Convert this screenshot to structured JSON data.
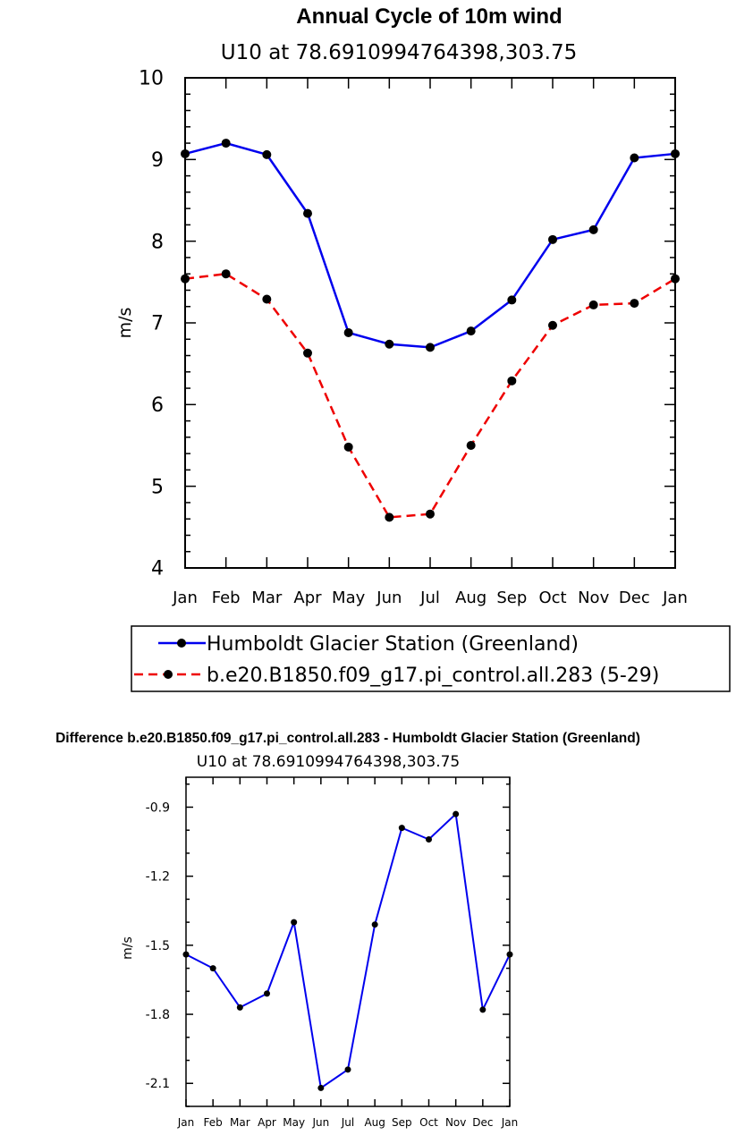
{
  "chart_data": [
    {
      "type": "line",
      "title": "Annual Cycle of 10m wind",
      "subtitle": "U10  at  78.6910994764398,303.75",
      "ylabel": "m/s",
      "xlabel": "",
      "ylim": [
        4,
        10
      ],
      "yticks": [
        "4",
        "5",
        "6",
        "7",
        "8",
        "9",
        "10"
      ],
      "categories": [
        "Jan",
        "Feb",
        "Mar",
        "Apr",
        "May",
        "Jun",
        "Jul",
        "Aug",
        "Sep",
        "Oct",
        "Nov",
        "Dec",
        "Jan"
      ],
      "series": [
        {
          "name": "Humboldt Glacier Station (Greenland)",
          "color": "#0000ee",
          "style": "solid",
          "values": [
            9.07,
            9.2,
            9.06,
            8.34,
            6.88,
            6.74,
            6.7,
            6.9,
            7.28,
            8.02,
            8.14,
            9.02,
            9.07
          ]
        },
        {
          "name": "b.e20.B1850.f09_g17.pi_control.all.283 (5-29)",
          "color": "#ee0000",
          "style": "dashed",
          "values": [
            7.54,
            7.6,
            7.29,
            6.63,
            5.48,
            4.62,
            4.66,
            5.5,
            6.29,
            6.97,
            7.22,
            7.24,
            7.54
          ]
        }
      ],
      "legend": "bottom"
    },
    {
      "type": "line",
      "title": "Difference b.e20.B1850.f09_g17.pi_control.all.283 - Humboldt Glacier Station (Greenland)",
      "subtitle": "U10  at  78.6910994764398,303.75",
      "ylabel": "m/s",
      "xlabel": "",
      "ylim": [
        -2.2,
        -0.77
      ],
      "yticks": [
        "-0.9",
        "-1.2",
        "-1.5",
        "-1.8",
        "-2.1"
      ],
      "categories": [
        "Jan",
        "Feb",
        "Mar",
        "Apr",
        "May",
        "Jun",
        "Jul",
        "Aug",
        "Sep",
        "Oct",
        "Nov",
        "Dec",
        "Jan"
      ],
      "series": [
        {
          "name": "Difference",
          "color": "#0000ee",
          "style": "solid",
          "values": [
            -1.54,
            -1.6,
            -1.77,
            -1.71,
            -1.4,
            -2.12,
            -2.04,
            -1.41,
            -0.99,
            -1.04,
            -0.93,
            -1.78,
            -1.54
          ]
        }
      ]
    }
  ]
}
